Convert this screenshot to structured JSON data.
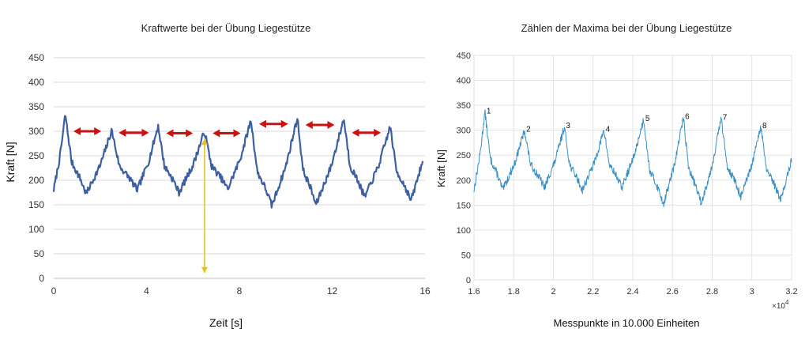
{
  "chart_data": [
    {
      "type": "line",
      "title": "Kraftwerte bei der Übung Liegestütze",
      "xlabel": "Zeit [s]",
      "ylabel": "Kraft [N]",
      "xlim": [
        0,
        16
      ],
      "ylim": [
        0,
        450
      ],
      "xticks": [
        "0",
        "4",
        "8",
        "12",
        "16"
      ],
      "yticks": [
        "0",
        "50",
        "100",
        "150",
        "200",
        "250",
        "300",
        "350",
        "400",
        "450"
      ],
      "grid": "horizontal",
      "color": "#3d5fa1",
      "peaks": [
        {
          "x": 0.5,
          "y": 335
        },
        {
          "x": 2.5,
          "y": 302
        },
        {
          "x": 4.5,
          "y": 311
        },
        {
          "x": 6.5,
          "y": 300
        },
        {
          "x": 8.5,
          "y": 323
        },
        {
          "x": 10.5,
          "y": 328
        },
        {
          "x": 12.5,
          "y": 326
        },
        {
          "x": 14.5,
          "y": 310
        }
      ],
      "troughs": [
        {
          "x": 1.4,
          "y": 172
        },
        {
          "x": 3.6,
          "y": 180
        },
        {
          "x": 5.4,
          "y": 175
        },
        {
          "x": 7.5,
          "y": 182
        },
        {
          "x": 9.4,
          "y": 148
        },
        {
          "x": 11.3,
          "y": 150
        },
        {
          "x": 13.4,
          "y": 165
        },
        {
          "x": 15.4,
          "y": 158
        }
      ],
      "x_end": 15.9,
      "annotations": {
        "double_arrows": [
          {
            "x1": 0.85,
            "x2": 2.05,
            "y": 300,
            "color": "#cc1111"
          },
          {
            "x1": 2.8,
            "x2": 4.1,
            "y": 297,
            "color": "#cc1111"
          },
          {
            "x1": 4.85,
            "x2": 6.0,
            "y": 296,
            "color": "#cc1111"
          },
          {
            "x1": 6.85,
            "x2": 8.05,
            "y": 296,
            "color": "#cc1111"
          },
          {
            "x1": 8.85,
            "x2": 10.1,
            "y": 315,
            "color": "#cc1111"
          },
          {
            "x1": 10.85,
            "x2": 12.1,
            "y": 313,
            "color": "#cc1111"
          },
          {
            "x1": 12.85,
            "x2": 14.1,
            "y": 297,
            "color": "#cc1111"
          }
        ],
        "vertical_arrow": {
          "x": 6.5,
          "y1": 285,
          "y2": 10,
          "color": "#e5c22c"
        }
      }
    },
    {
      "type": "line",
      "title": "Zählen der Maxima bei der Übung Liegestütze",
      "xlabel": "Messpunkte in  10.000 Einheiten",
      "ylabel": "Kraft [N]",
      "xlim": [
        1.6,
        3.2
      ],
      "ylim": [
        0,
        450
      ],
      "xticks": [
        "1.6",
        "1.8",
        "2",
        "2.2",
        "2.4",
        "2.6",
        "2.8",
        "3",
        "3.2"
      ],
      "yticks": [
        "0",
        "50",
        "100",
        "150",
        "200",
        "250",
        "300",
        "350",
        "400",
        "450"
      ],
      "x_multiplier": "×10",
      "x_multiplier_exp": "4",
      "grid": "both",
      "color": "#3a8fc4",
      "peaks": [
        {
          "x": 1.655,
          "y": 337,
          "label": "1"
        },
        {
          "x": 1.855,
          "y": 300,
          "label": "2"
        },
        {
          "x": 2.055,
          "y": 307,
          "label": "3"
        },
        {
          "x": 2.255,
          "y": 300,
          "label": "4"
        },
        {
          "x": 2.455,
          "y": 322,
          "label": "5"
        },
        {
          "x": 2.655,
          "y": 326,
          "label": "6"
        },
        {
          "x": 2.845,
          "y": 324,
          "label": "7"
        },
        {
          "x": 3.045,
          "y": 307,
          "label": "8"
        }
      ],
      "troughs": [
        {
          "x": 1.745,
          "y": 180
        },
        {
          "x": 1.955,
          "y": 185
        },
        {
          "x": 2.145,
          "y": 180
        },
        {
          "x": 2.345,
          "y": 185
        },
        {
          "x": 2.555,
          "y": 152
        },
        {
          "x": 2.745,
          "y": 153
        },
        {
          "x": 2.945,
          "y": 166
        },
        {
          "x": 3.145,
          "y": 160
        }
      ],
      "x_start": 1.6,
      "x_end": 3.2
    }
  ]
}
